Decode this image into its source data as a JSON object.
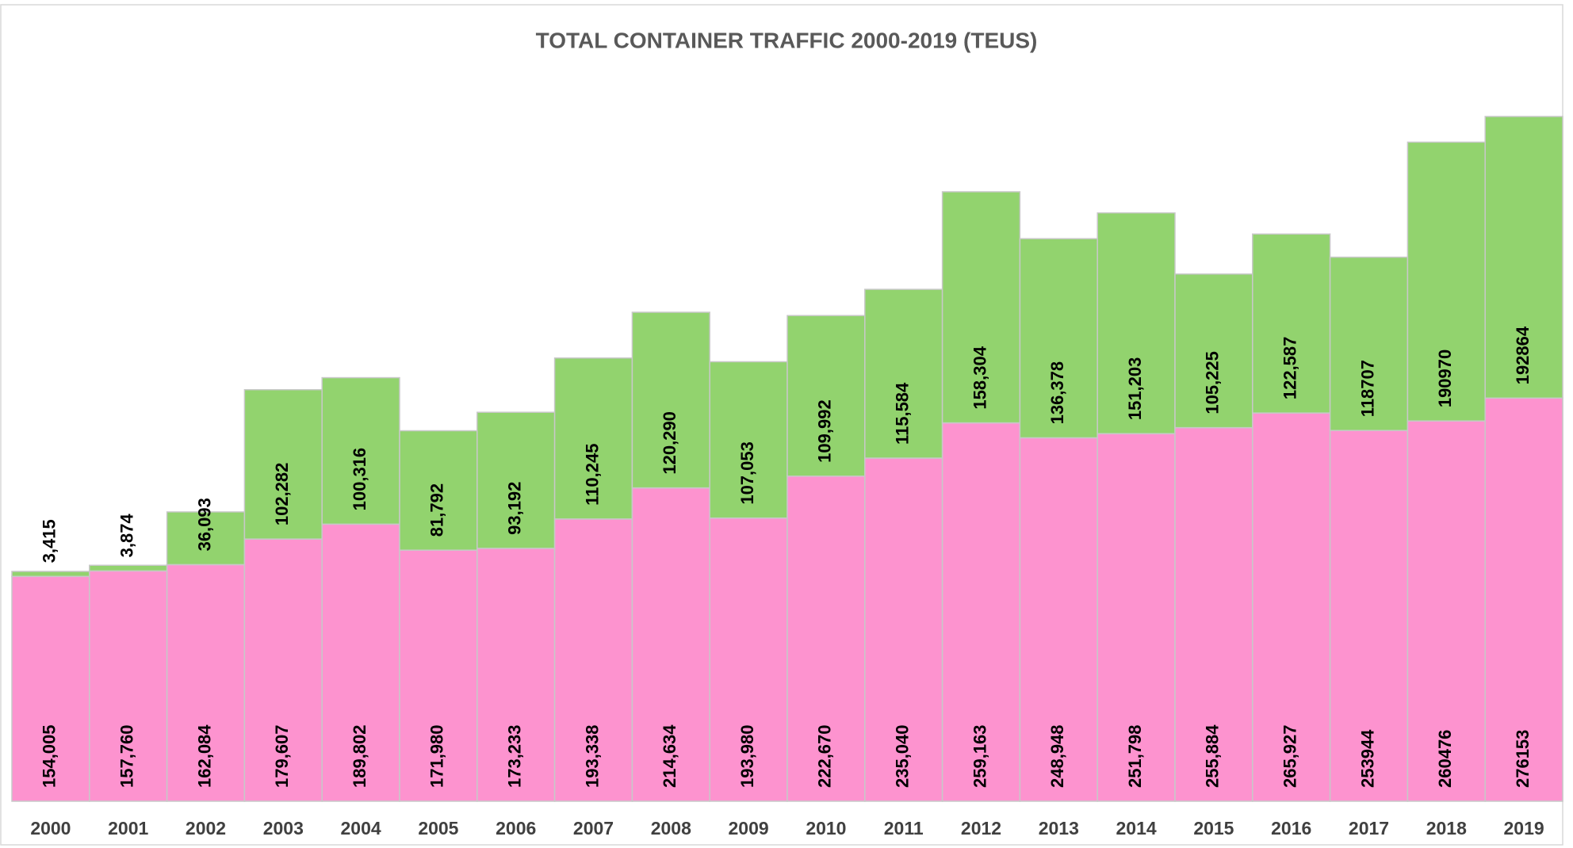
{
  "chart_data": {
    "type": "stacked_bar",
    "title": "TOTAL CONTAINER TRAFFIC 2000-2019 (TEUS)",
    "categories": [
      "2000",
      "2001",
      "2002",
      "2003",
      "2004",
      "2005",
      "2006",
      "2007",
      "2008",
      "2009",
      "2010",
      "2011",
      "2012",
      "2013",
      "2014",
      "2015",
      "2016",
      "2017",
      "2018",
      "2019"
    ],
    "series": [
      {
        "color": "#fd93cf",
        "values": [
          154005,
          157760,
          162084,
          179607,
          189802,
          171980,
          173233,
          193338,
          214634,
          193980,
          222670,
          235040,
          259163,
          248948,
          251798,
          255884,
          265927,
          253944,
          260476,
          276153
        ],
        "value_labels": [
          "154,005",
          "157,760",
          "162,084",
          "179,607",
          "189,802",
          "171,980",
          "173,233",
          "193,338",
          "214,634",
          "193,980",
          "222,670",
          "235,040",
          "259,163",
          "248,948",
          "251,798",
          "255,884",
          "265,927",
          "253944",
          "260476",
          "276153"
        ]
      },
      {
        "color": "#92d36e",
        "values": [
          3415,
          3874,
          36093,
          102282,
          100316,
          81792,
          93192,
          110245,
          120290,
          107053,
          109992,
          115584,
          158304,
          136378,
          151203,
          105225,
          122587,
          118707,
          190970,
          192864
        ],
        "value_labels": [
          "3,415",
          "3,874",
          "36,093",
          "102,282",
          "100,316",
          "81,792",
          "93,192",
          "110,245",
          "120,290",
          "107,053",
          "109,992",
          "115,584",
          "158,304",
          "136,378",
          "151,203",
          "105,225",
          "122,587",
          "118707",
          "190970",
          "192864"
        ]
      }
    ]
  }
}
